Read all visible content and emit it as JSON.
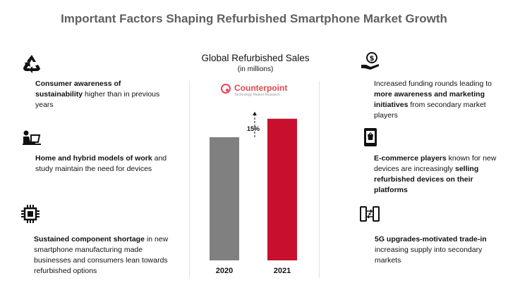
{
  "title": "Important Factors Shaping Refurbished Smartphone Market Growth",
  "logo": {
    "name": "Counterpoint",
    "tagline": "Technology Market Research"
  },
  "left_factors": [
    {
      "icon": "recycle-icon",
      "bold": "Consumer awareness of sustainability",
      "rest": " higher than in previous years"
    },
    {
      "icon": "laptop-user-icon",
      "bold": "Home and hybrid models of work",
      "rest": " and study maintain the need for devices"
    },
    {
      "icon": "chip-icon",
      "bold": "Sustained component shortage",
      "rest": " in new smartphone manufacturing made businesses and consumers lean towards refurbished options"
    }
  ],
  "right_factors": [
    {
      "icon": "hand-dollar-icon",
      "pre": "Increased funding rounds leading to ",
      "bold": "more awareness and marketing initiatives",
      "post": " from secondary market players"
    },
    {
      "icon": "phone-store-icon",
      "pre": "",
      "bold": "E-commerce players",
      "post": " known for new devices are increasingly ",
      "bold2": "selling refurbished devices on their platforms"
    },
    {
      "icon": "phone-exchange-icon",
      "pre": "",
      "bold": "5G upgrades-motivated trade-in",
      "post": " increasing supply into secondary markets"
    }
  ],
  "chart_data": {
    "type": "bar",
    "title": "Global Refurbished Sales",
    "subtitle": "(in millions)",
    "categories": [
      "2020",
      "2021"
    ],
    "values": [
      100,
      115
    ],
    "colors": [
      "#808080",
      "#c8102e"
    ],
    "growth_label": "15%",
    "ylim": [
      0,
      140
    ]
  }
}
